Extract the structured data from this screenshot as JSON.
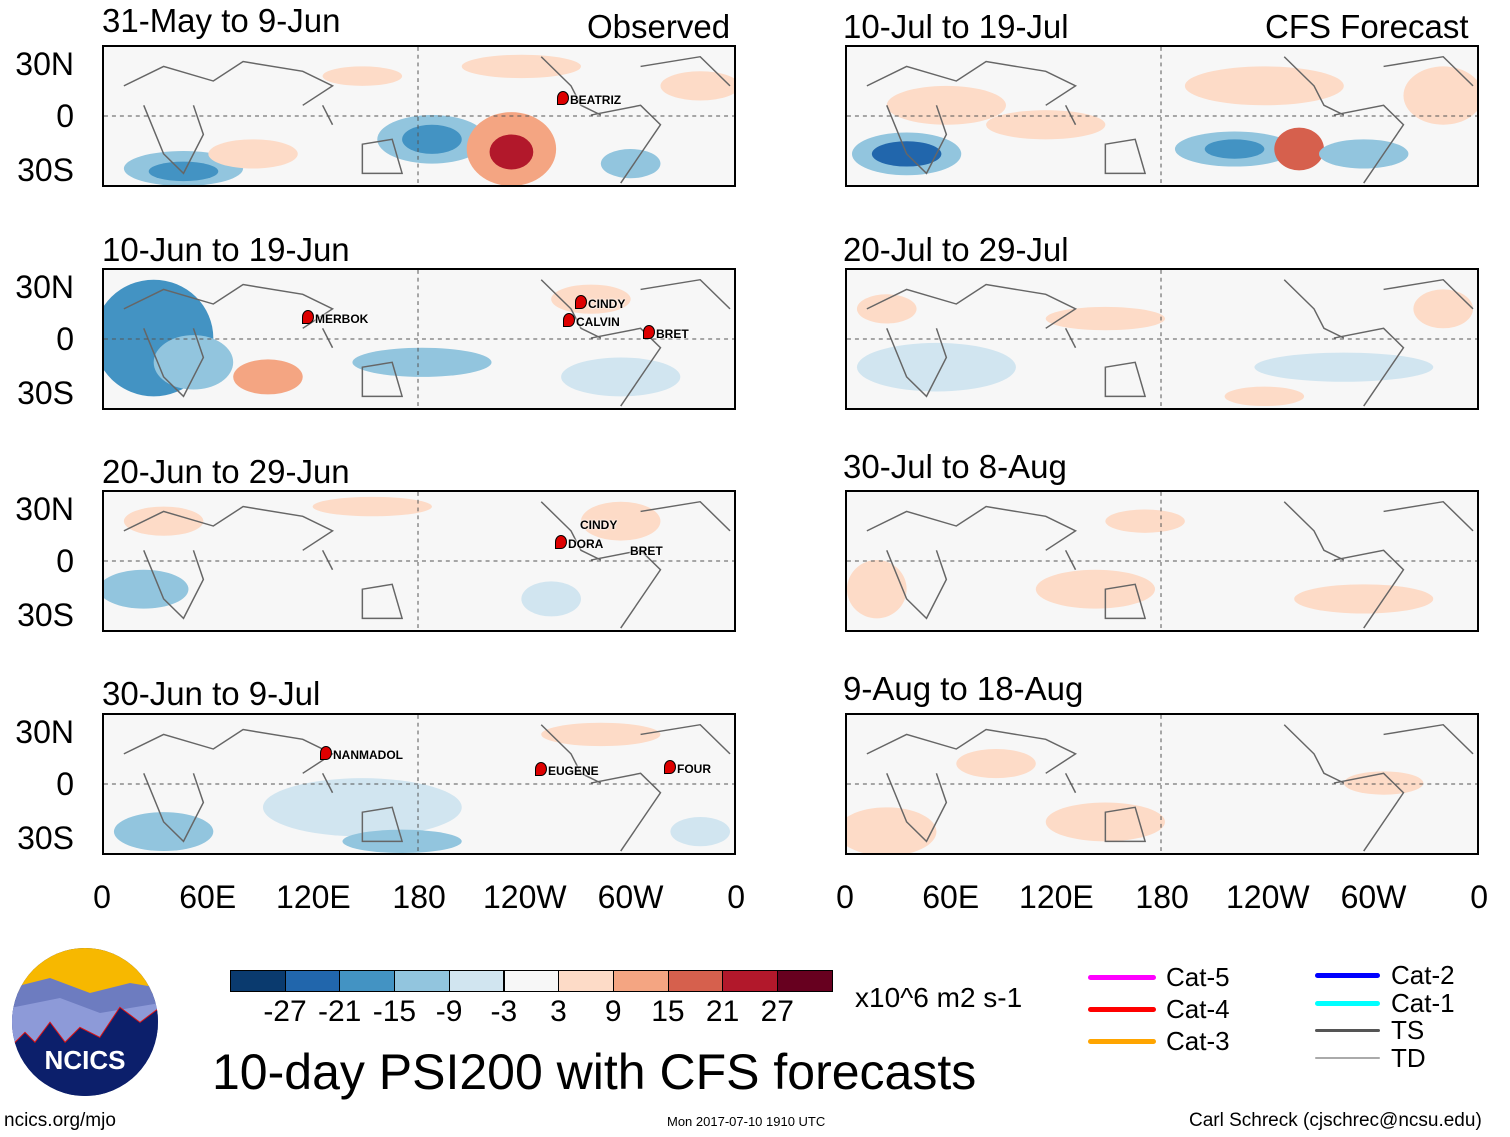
{
  "headers": {
    "observed": "Observed",
    "forecast": "CFS Forecast"
  },
  "panels_left": [
    {
      "title": "31-May to 9-Jun",
      "storms": [
        "BEATRIZ"
      ]
    },
    {
      "title": "10-Jun to 19-Jun",
      "storms": [
        "MERBOK",
        "CINDY",
        "CALVIN",
        "BRET"
      ]
    },
    {
      "title": "20-Jun to 29-Jun",
      "storms": [
        "CINDY",
        "DORA",
        "BRET"
      ]
    },
    {
      "title": "30-Jun to 9-Jul",
      "storms": [
        "NANMADOL",
        "EUGENE",
        "FOUR"
      ]
    }
  ],
  "panels_right": [
    {
      "title": "10-Jul to 19-Jul"
    },
    {
      "title": "20-Jul to 29-Jul"
    },
    {
      "title": "30-Jul to 8-Aug"
    },
    {
      "title": "9-Aug to 18-Aug"
    }
  ],
  "lat_labels": [
    "30N",
    "0",
    "30S"
  ],
  "lon_labels": [
    "0",
    "60E",
    "120E",
    "180",
    "120W",
    "60W",
    "0"
  ],
  "colorbar": {
    "colors": [
      "#0a3a6e",
      "#2166ac",
      "#4393c3",
      "#92c5de",
      "#d1e5f0",
      "#f7f7f7",
      "#fddbc7",
      "#f4a582",
      "#d6604d",
      "#b2182b",
      "#67001f"
    ],
    "labels": [
      "-27",
      "-21",
      "-15",
      "-9",
      "-3",
      "3",
      "9",
      "15",
      "21",
      "27"
    ],
    "units": "x10^6 m2 s-1"
  },
  "legend": [
    {
      "label": "Cat-5",
      "color": "#ff00ff"
    },
    {
      "label": "Cat-4",
      "color": "#ff0000"
    },
    {
      "label": "Cat-3",
      "color": "#ffa500"
    },
    {
      "label": "Cat-2",
      "color": "#0000ff"
    },
    {
      "label": "Cat-1",
      "color": "#00ffff"
    },
    {
      "label": "TS",
      "color": "#555555"
    },
    {
      "label": "TD",
      "color": "#aaaaaa"
    }
  ],
  "title": "10-day PSI200 with CFS forecasts",
  "logo_text": "NCICS",
  "footer": {
    "left": "ncics.org/mjo",
    "center": "Mon 2017-07-10 1910 UTC",
    "right": "Carl Schreck (cjschrec@ncsu.edu)"
  }
}
